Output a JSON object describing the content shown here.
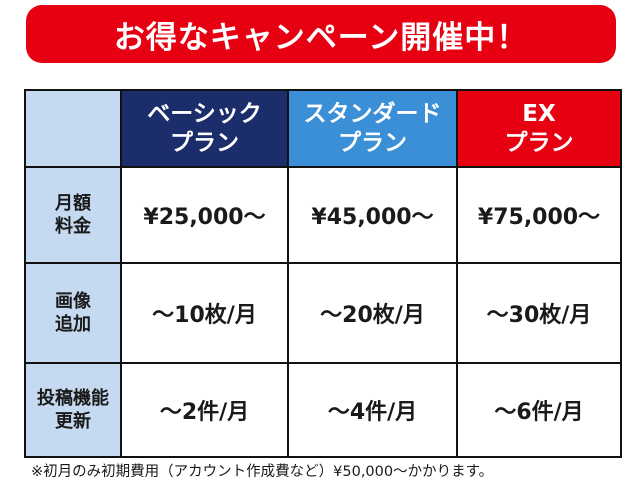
{
  "banner": {
    "text": "お得なキャンペーン開催中！"
  },
  "plans": [
    {
      "line1": "ベーシック",
      "line2": "プラン",
      "color": "#1c2d6b"
    },
    {
      "line1": "スタンダード",
      "line2": "プラン",
      "color": "#3a8fd6"
    },
    {
      "line1": "EX",
      "line2": "プラン",
      "color": "#e60012"
    }
  ],
  "rows": [
    {
      "label1": "月額",
      "label2": "料金",
      "values": [
        "¥25,000〜",
        "¥45,000〜",
        "¥75,000〜"
      ]
    },
    {
      "label1": "画像",
      "label2": "追加",
      "values": [
        "〜10枚/月",
        "〜20枚/月",
        "〜30枚/月"
      ]
    },
    {
      "label1": "投稿機能",
      "label2": "更新",
      "values": [
        "〜2件/月",
        "〜4件/月",
        "〜6件/月"
      ]
    }
  ],
  "note": "※初月のみ初期費用（アカウント作成費など）¥50,000〜かかります。",
  "colors": {
    "accent_red": "#e60012",
    "header_bg": "#c5d9f0"
  }
}
